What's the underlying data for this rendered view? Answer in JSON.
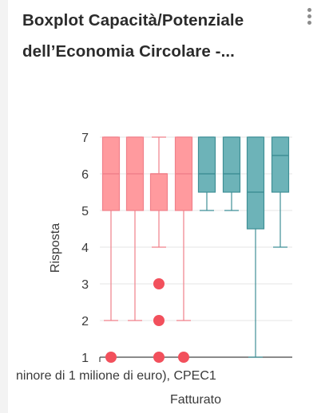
{
  "header": {
    "title_line1": "Boxplot Capacità/Potenziale",
    "title_line2": "dell’Economia Circolare -...",
    "menu_icon": "more-vertical-icon"
  },
  "chart_data": {
    "type": "boxplot",
    "title": "Boxplot Capacità/Potenziale dell’Economia Circolare -...",
    "xlabel": "Fatturato",
    "ylabel": "Risposta",
    "x_tick_label": "ninore di 1 milione di euro), CPEC1",
    "ylim": [
      1,
      7
    ],
    "yticks": [
      "1",
      "2",
      "3",
      "4",
      "5",
      "6",
      "7"
    ],
    "grid": true,
    "colors": {
      "group1_fill": "#ff9a9e",
      "group1_stroke": "#f0808a",
      "group2_fill": "#6db3b8",
      "group2_stroke": "#3f8f96",
      "outlier": "#f2505c",
      "grid": "#e6e6e6"
    },
    "series": [
      {
        "group": 1,
        "min": 2,
        "q1": 5,
        "median": 6,
        "q3": 7,
        "max": 7,
        "outliers": [
          1
        ]
      },
      {
        "group": 1,
        "min": 2,
        "q1": 5,
        "median": 6,
        "q3": 7,
        "max": 7,
        "outliers": []
      },
      {
        "group": 1,
        "min": 4,
        "q1": 5,
        "median": 6,
        "q3": 6,
        "max": 7,
        "outliers": [
          3,
          2,
          1
        ]
      },
      {
        "group": 1,
        "min": 2,
        "q1": 5,
        "median": 6,
        "q3": 7,
        "max": 7,
        "outliers": [
          1
        ]
      },
      {
        "group": 2,
        "min": 5,
        "q1": 5.5,
        "median": 6,
        "q3": 7,
        "max": 7,
        "outliers": []
      },
      {
        "group": 2,
        "min": 5,
        "q1": 5.5,
        "median": 6,
        "q3": 7,
        "max": 7,
        "outliers": []
      },
      {
        "group": 2,
        "min": 1,
        "q1": 4.5,
        "median": 5.5,
        "q3": 7,
        "max": 7,
        "outliers": []
      },
      {
        "group": 2,
        "min": 4,
        "q1": 5.5,
        "median": 6.5,
        "q3": 7,
        "max": 7,
        "outliers": []
      }
    ]
  }
}
